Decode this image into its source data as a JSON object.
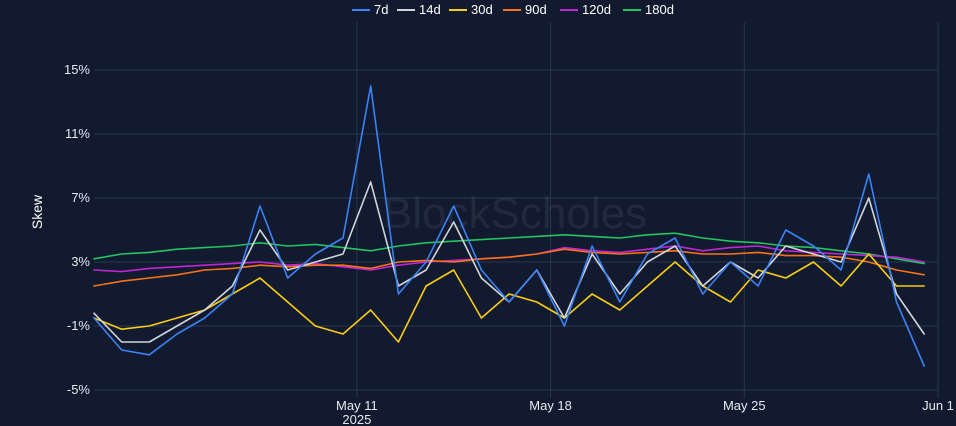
{
  "watermark": "BlockScholes",
  "chart_data": {
    "type": "line",
    "ylabel": "Skew",
    "xlabel": "",
    "ylim": [
      -5.5,
      18
    ],
    "y_ticks": [
      {
        "value": 15,
        "label": "15%"
      },
      {
        "value": 11,
        "label": "11%"
      },
      {
        "value": 7,
        "label": "7%"
      },
      {
        "value": 3,
        "label": "3%"
      },
      {
        "value": -1,
        "label": "-1%"
      },
      {
        "value": -5,
        "label": "-5%"
      }
    ],
    "xlim": [
      0,
      30.5
    ],
    "x_ticks": [
      {
        "value": 9.5,
        "label": "May 11",
        "sublabel": "2025"
      },
      {
        "value": 16.5,
        "label": "May 18",
        "sublabel": ""
      },
      {
        "value": 23.5,
        "label": "May 25",
        "sublabel": ""
      },
      {
        "value": 30.5,
        "label": "Jun 1",
        "sublabel": ""
      }
    ],
    "grid": true,
    "legend_position": "top-center",
    "x": [
      0,
      1,
      2,
      3,
      4,
      5,
      6,
      7,
      8,
      9,
      10,
      11,
      12,
      13,
      14,
      15,
      16,
      17,
      18,
      19,
      20,
      21,
      22,
      23,
      24,
      25,
      26,
      27,
      28,
      29,
      30
    ],
    "series": [
      {
        "name": "7d",
        "color": "#3b82f6",
        "values": [
          -0.5,
          -2.5,
          -2.8,
          -1.5,
          -0.5,
          1.0,
          6.5,
          2.0,
          3.5,
          4.5,
          14.0,
          1.0,
          3.0,
          6.5,
          2.5,
          0.5,
          2.5,
          -1.0,
          4.0,
          0.5,
          3.5,
          4.5,
          1.0,
          3.0,
          1.5,
          5.0,
          4.0,
          2.5,
          8.5,
          0.5,
          -3.5
        ]
      },
      {
        "name": "14d",
        "color": "#d1d5db",
        "values": [
          -0.2,
          -2.0,
          -2.0,
          -1.0,
          0.0,
          1.5,
          5.0,
          2.5,
          3.0,
          3.5,
          8.0,
          1.5,
          2.5,
          5.5,
          2.0,
          0.5,
          2.5,
          -0.5,
          3.5,
          1.0,
          3.0,
          4.0,
          1.5,
          3.0,
          2.0,
          4.0,
          3.5,
          3.0,
          7.0,
          1.0,
          -1.5
        ]
      },
      {
        "name": "30d",
        "color": "#facc15",
        "values": [
          -0.5,
          -1.2,
          -1.0,
          -0.5,
          0.0,
          1.0,
          2.0,
          0.5,
          -1.0,
          -1.5,
          0.0,
          -2.0,
          1.5,
          2.5,
          -0.5,
          1.0,
          0.5,
          -0.5,
          1.0,
          0.0,
          1.5,
          3.0,
          1.5,
          0.5,
          2.5,
          2.0,
          3.0,
          1.5,
          3.5,
          1.5,
          1.5
        ]
      },
      {
        "name": "90d",
        "color": "#f97316",
        "values": [
          1.5,
          1.8,
          2.0,
          2.2,
          2.5,
          2.6,
          2.8,
          2.7,
          2.8,
          2.8,
          2.6,
          3.0,
          3.1,
          3.0,
          3.2,
          3.3,
          3.5,
          3.8,
          3.6,
          3.5,
          3.6,
          3.7,
          3.5,
          3.5,
          3.6,
          3.4,
          3.4,
          3.3,
          3.0,
          2.5,
          2.2
        ]
      },
      {
        "name": "120d",
        "color": "#c026d3",
        "values": [
          2.5,
          2.4,
          2.6,
          2.7,
          2.8,
          2.9,
          3.0,
          2.8,
          2.9,
          2.7,
          2.5,
          2.8,
          3.0,
          3.1,
          3.2,
          3.3,
          3.5,
          3.9,
          3.7,
          3.6,
          3.8,
          4.0,
          3.7,
          3.9,
          4.0,
          3.7,
          3.6,
          3.5,
          3.4,
          3.3,
          3.0
        ]
      },
      {
        "name": "180d",
        "color": "#22c55e",
        "values": [
          3.2,
          3.5,
          3.6,
          3.8,
          3.9,
          4.0,
          4.2,
          4.0,
          4.1,
          3.9,
          3.7,
          4.0,
          4.2,
          4.3,
          4.4,
          4.5,
          4.6,
          4.7,
          4.6,
          4.5,
          4.7,
          4.8,
          4.5,
          4.3,
          4.2,
          4.0,
          3.9,
          3.7,
          3.5,
          3.2,
          2.9
        ]
      }
    ]
  }
}
